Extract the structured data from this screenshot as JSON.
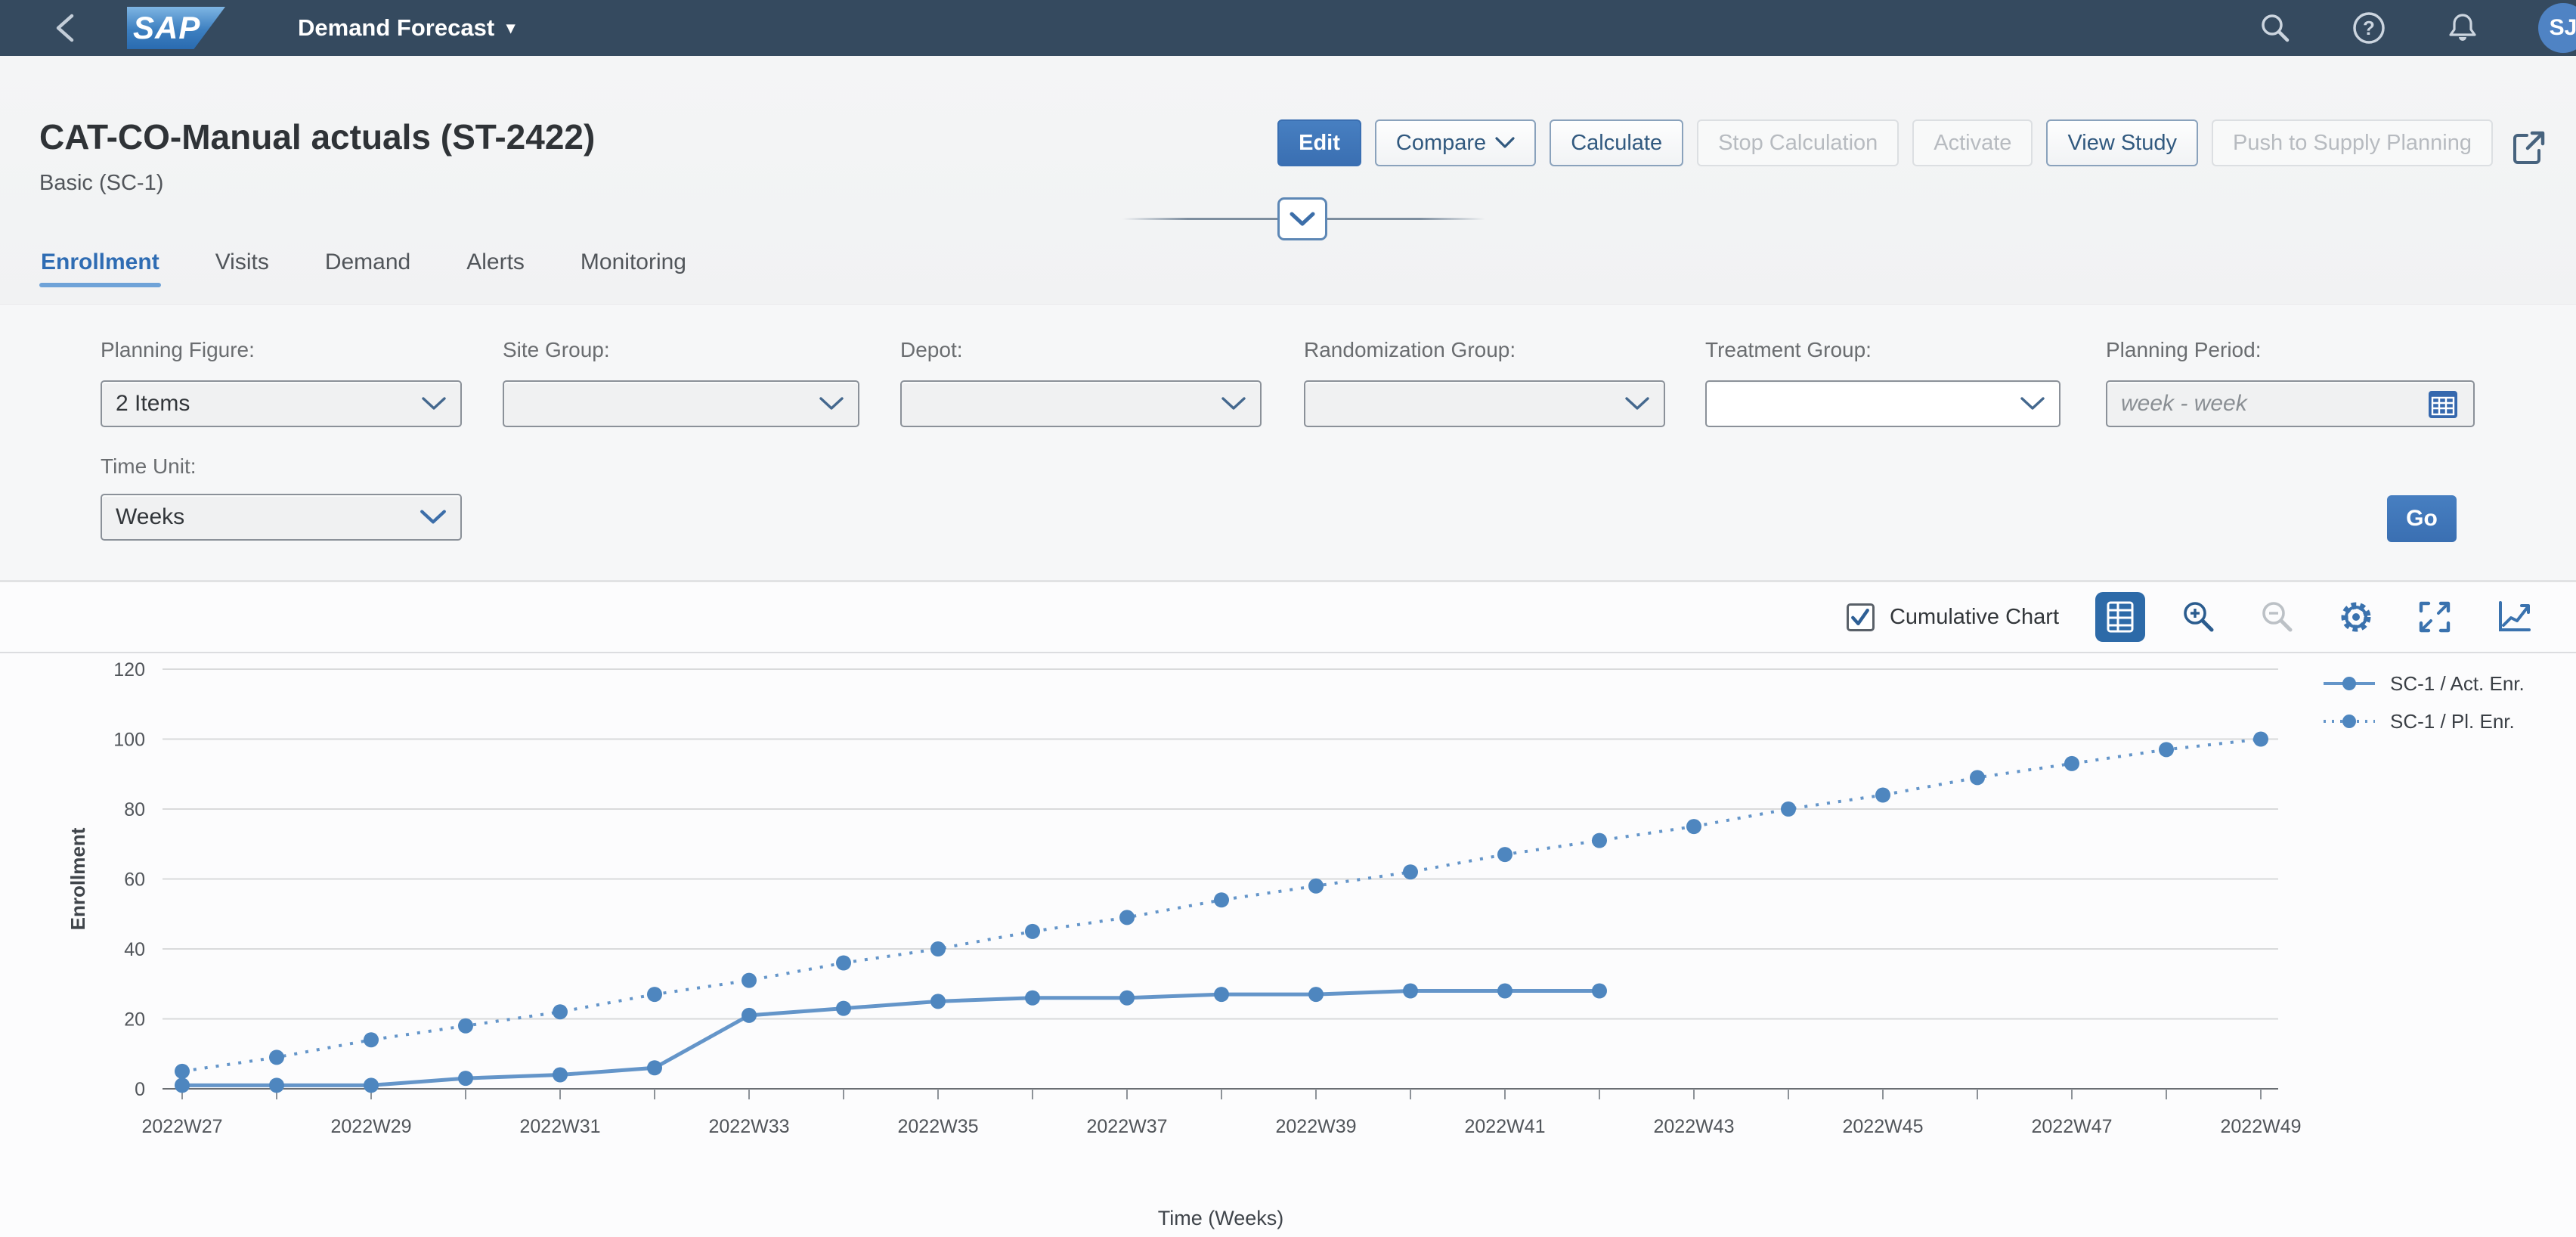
{
  "shellbar": {
    "logo_text": "SAP",
    "app_title": "Demand Forecast",
    "avatar_initials": "SJ"
  },
  "header": {
    "title": "CAT-CO-Manual actuals (ST-2422)",
    "subtitle": "Basic (SC-1)",
    "actions": [
      {
        "label": "Edit",
        "style": "primary"
      },
      {
        "label": "Compare",
        "style": "default",
        "has_chevron": true
      },
      {
        "label": "Calculate",
        "style": "default"
      },
      {
        "label": "Stop Calculation",
        "style": "disabled"
      },
      {
        "label": "Activate",
        "style": "disabled"
      },
      {
        "label": "View Study",
        "style": "default"
      },
      {
        "label": "Push to Supply Planning",
        "style": "disabled"
      }
    ]
  },
  "tabs": [
    {
      "label": "Enrollment",
      "active": true
    },
    {
      "label": "Visits",
      "active": false
    },
    {
      "label": "Demand",
      "active": false
    },
    {
      "label": "Alerts",
      "active": false
    },
    {
      "label": "Monitoring",
      "active": false
    }
  ],
  "filters": {
    "planning_figure": {
      "label": "Planning Figure:",
      "value": "2 Items"
    },
    "site_group": {
      "label": "Site Group:",
      "value": ""
    },
    "depot": {
      "label": "Depot:",
      "value": ""
    },
    "randomization_group": {
      "label": "Randomization Group:",
      "value": ""
    },
    "treatment_group": {
      "label": "Treatment Group:",
      "value": ""
    },
    "planning_period": {
      "label": "Planning Period:",
      "placeholder": "week - week"
    },
    "time_unit": {
      "label": "Time Unit:",
      "value": "Weeks"
    },
    "go_label": "Go"
  },
  "chart_toolbar": {
    "cumulative_label": "Cumulative Chart",
    "cumulative_checked": true
  },
  "chart_data": {
    "type": "line",
    "title": "",
    "xlabel": "Time (Weeks)",
    "ylabel": "Enrollment",
    "ylim": [
      0,
      120
    ],
    "yticks": [
      0,
      20,
      40,
      60,
      80,
      100,
      120
    ],
    "x_label_every": 2,
    "grid": true,
    "legend_position": "top-right",
    "categories": [
      "2022W27",
      "2022W28",
      "2022W29",
      "2022W30",
      "2022W31",
      "2022W32",
      "2022W33",
      "2022W34",
      "2022W35",
      "2022W36",
      "2022W37",
      "2022W38",
      "2022W39",
      "2022W40",
      "2022W41",
      "2022W42",
      "2022W43",
      "2022W44",
      "2022W45",
      "2022W46",
      "2022W47",
      "2022W48",
      "2022W49"
    ],
    "series": [
      {
        "name": "SC-1 / Act. Enr.",
        "style": "solid",
        "values": [
          1,
          1,
          1,
          3,
          4,
          6,
          21,
          23,
          25,
          26,
          26,
          27,
          27,
          28,
          28,
          28
        ]
      },
      {
        "name": "SC-1 / Pl. Enr.",
        "style": "dotted",
        "values": [
          5,
          9,
          14,
          18,
          22,
          27,
          31,
          36,
          40,
          45,
          49,
          54,
          58,
          62,
          67,
          71,
          75,
          80,
          84,
          89,
          93,
          97,
          100
        ]
      }
    ],
    "colors": {
      "series_blue": "#4e86bf",
      "line_blue": "#6495c9",
      "gridline": "#d9dadb",
      "axis": "#6a6e73"
    }
  }
}
